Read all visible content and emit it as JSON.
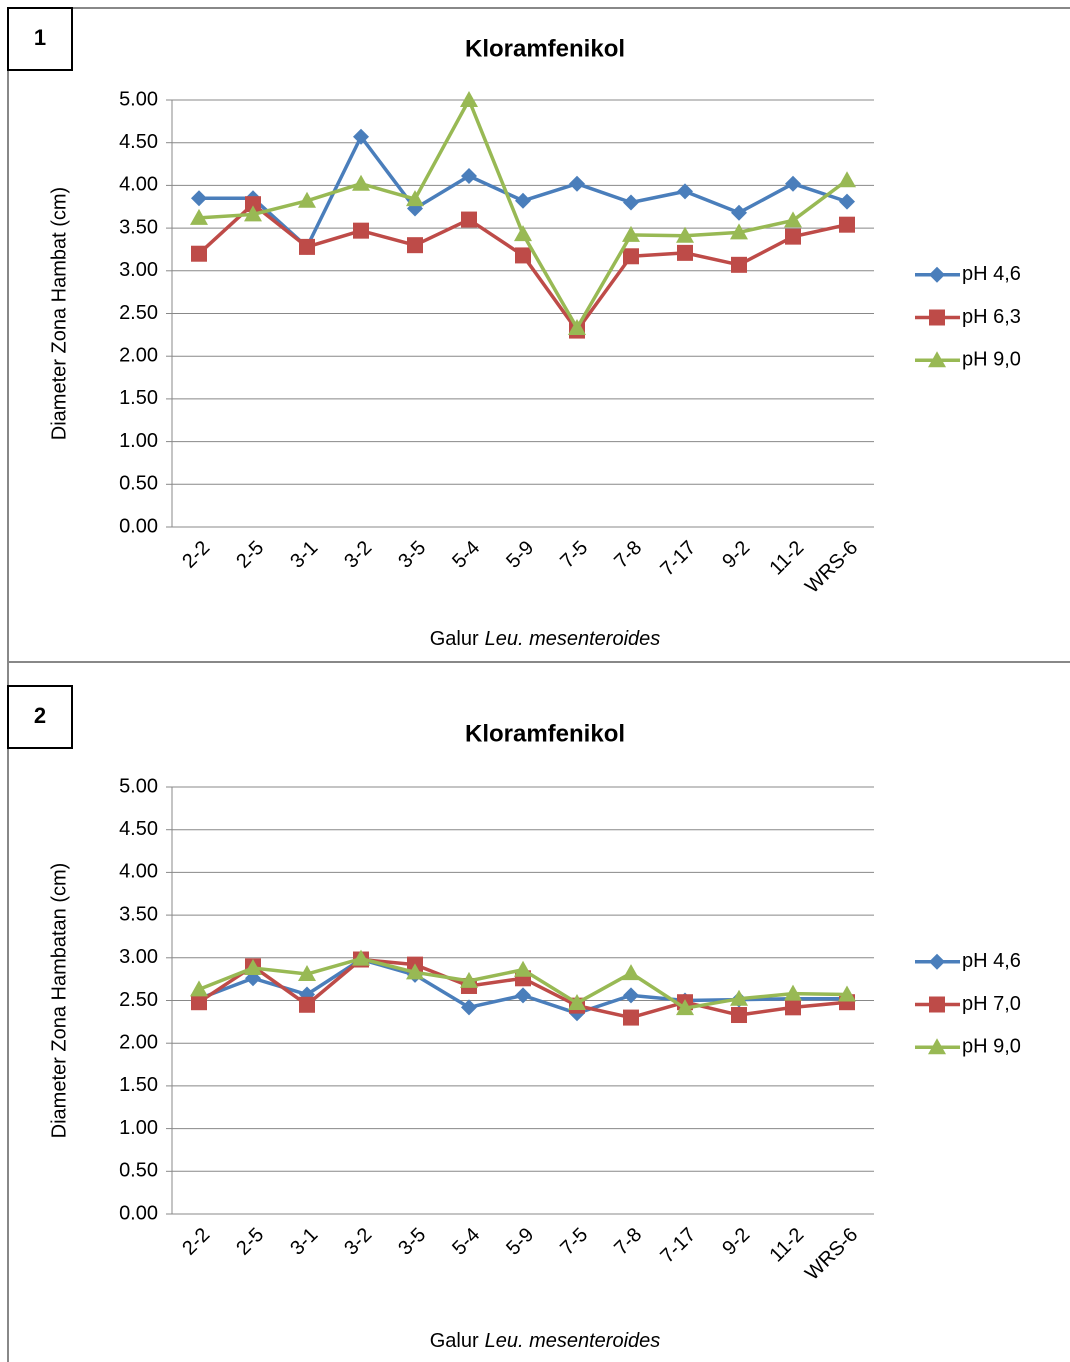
{
  "chart_data": [
    {
      "type": "line",
      "label": "1",
      "title": "Kloramfenikol",
      "ylabel": "Diameter Zona Hambat (cm)",
      "xlabel_prefix": "Galur",
      "xlabel_italic": "Leu. mesenteroides",
      "categories": [
        "2-2",
        "2-5",
        "3-1",
        "3-2",
        "3-5",
        "5-4",
        "5-9",
        "7-5",
        "7-8",
        "7-17",
        "9-2",
        "11-2",
        "WRS-6"
      ],
      "ylim": [
        0,
        5
      ],
      "yticks": [
        {
          "value": 0,
          "label": "0.00"
        },
        {
          "value": 0.5,
          "label": "0.50"
        },
        {
          "value": 1,
          "label": "1.00"
        },
        {
          "value": 1.5,
          "label": "1.50"
        },
        {
          "value": 2,
          "label": "2.00"
        },
        {
          "value": 2.5,
          "label": "2.50"
        },
        {
          "value": 3,
          "label": "3.00"
        },
        {
          "value": 3.5,
          "label": "3.50"
        },
        {
          "value": 4,
          "label": "4.00"
        },
        {
          "value": 4.5,
          "label": "4.50"
        },
        {
          "value": 5,
          "label": "5.00"
        }
      ],
      "grid": true,
      "legend": "right",
      "series": [
        {
          "name": "pH 4,6",
          "color": "#4a7ebb",
          "marker": "diamond",
          "values": [
            3.85,
            3.85,
            3.28,
            4.57,
            3.73,
            4.11,
            3.82,
            4.02,
            3.8,
            3.93,
            3.68,
            4.02,
            3.81
          ]
        },
        {
          "name": "pH 6,3",
          "color": "#be4b48",
          "marker": "square",
          "values": [
            3.2,
            3.78,
            3.28,
            3.47,
            3.3,
            3.6,
            3.18,
            2.3,
            3.17,
            3.21,
            3.07,
            3.4,
            3.54
          ]
        },
        {
          "name": "pH 9,0",
          "color": "#98b954",
          "marker": "triangle",
          "values": [
            3.62,
            3.66,
            3.82,
            4.02,
            3.84,
            5.0,
            3.43,
            2.33,
            3.42,
            3.41,
            3.45,
            3.59,
            4.06
          ]
        }
      ]
    },
    {
      "type": "line",
      "label": "2",
      "title": "Kloramfenikol",
      "ylabel": "Diameter Zona Hambatan (cm)",
      "xlabel_prefix": "Galur",
      "xlabel_italic": "Leu. mesenteroides",
      "categories": [
        "2-2",
        "2-5",
        "3-1",
        "3-2",
        "3-5",
        "5-4",
        "5-9",
        "7-5",
        "7-8",
        "7-17",
        "9-2",
        "11-2",
        "WRS-6"
      ],
      "ylim": [
        0,
        5
      ],
      "yticks": [
        {
          "value": 0,
          "label": "0.00"
        },
        {
          "value": 0.5,
          "label": "0.50"
        },
        {
          "value": 1,
          "label": "1.00"
        },
        {
          "value": 1.5,
          "label": "1.50"
        },
        {
          "value": 2,
          "label": "2.00"
        },
        {
          "value": 2.5,
          "label": "2.50"
        },
        {
          "value": 3,
          "label": "3.00"
        },
        {
          "value": 3.5,
          "label": "3.50"
        },
        {
          "value": 4,
          "label": "4.00"
        },
        {
          "value": 4.5,
          "label": "4.50"
        },
        {
          "value": 5,
          "label": "5.00"
        }
      ],
      "grid": true,
      "legend": "right",
      "series": [
        {
          "name": "pH 4,6",
          "color": "#4a7ebb",
          "marker": "diamond",
          "values": [
            2.52,
            2.76,
            2.57,
            2.98,
            2.8,
            2.42,
            2.56,
            2.35,
            2.56,
            2.5,
            2.51,
            2.52,
            2.52
          ]
        },
        {
          "name": "pH 7,0",
          "color": "#be4b48",
          "marker": "square",
          "values": [
            2.48,
            2.9,
            2.45,
            2.98,
            2.92,
            2.67,
            2.76,
            2.44,
            2.3,
            2.48,
            2.33,
            2.42,
            2.48
          ]
        },
        {
          "name": "pH 9,0",
          "color": "#98b954",
          "marker": "triangle",
          "values": [
            2.63,
            2.88,
            2.81,
            2.99,
            2.83,
            2.73,
            2.86,
            2.47,
            2.82,
            2.41,
            2.52,
            2.58,
            2.57
          ]
        }
      ]
    }
  ]
}
